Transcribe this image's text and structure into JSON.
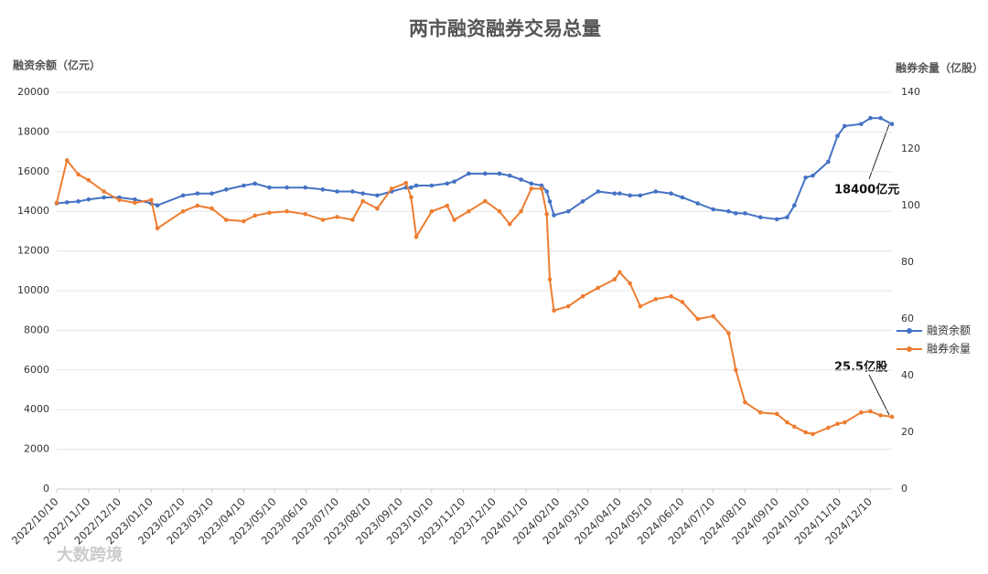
{
  "chart_data": {
    "type": "line",
    "title": "两市融资融券交易总量",
    "y_label": "融资余额（亿元）",
    "y2_label": "融券余量（亿股）",
    "watermark": "大数跨境",
    "x": [
      "2022/10/10",
      "2022/10/20",
      "2022/10/31",
      "2022/11/10",
      "2022/11/25",
      "2022/12/10",
      "2022/12/25",
      "2023/01/10",
      "2023/01/16",
      "2023/02/10",
      "2023/02/24",
      "2023/03/10",
      "2023/03/24",
      "2023/04/10",
      "2023/04/21",
      "2023/05/05",
      "2023/05/22",
      "2023/06/09",
      "2023/06/26",
      "2023/07/10",
      "2023/07/25",
      "2023/08/04",
      "2023/08/18",
      "2023/09/01",
      "2023/09/15",
      "2023/09/20",
      "2023/09/25",
      "2023/10/10",
      "2023/10/25",
      "2023/11/01",
      "2023/11/15",
      "2023/12/01",
      "2023/12/15",
      "2023/12/25",
      "2024/01/05",
      "2024/01/15",
      "2024/01/25",
      "2024/01/30",
      "2024/02/02",
      "2024/02/06",
      "2024/02/20",
      "2024/03/05",
      "2024/03/20",
      "2024/04/05",
      "2024/04/10",
      "2024/04/20",
      "2024/04/30",
      "2024/05/15",
      "2024/05/30",
      "2024/06/10",
      "2024/06/25",
      "2024/07/10",
      "2024/07/25",
      "2024/08/01",
      "2024/08/10",
      "2024/08/25",
      "2024/09/10",
      "2024/09/20",
      "2024/09/27",
      "2024/10/08",
      "2024/10/15",
      "2024/10/30",
      "2024/11/08",
      "2024/11/15",
      "2024/12/01",
      "2024/12/10",
      "2024/12/20",
      "2024/12/31"
    ],
    "series": [
      {
        "name": "融资余额",
        "color": "#4472c4",
        "axis": "y",
        "values": [
          14400,
          14450,
          14500,
          14600,
          14700,
          14700,
          14600,
          14400,
          14300,
          14800,
          14900,
          14900,
          15100,
          15300,
          15400,
          15200,
          15200,
          15200,
          15100,
          15000,
          15000,
          14900,
          14800,
          15000,
          15200,
          15200,
          15300,
          15300,
          15400,
          15500,
          15900,
          15900,
          15900,
          15800,
          15600,
          15400,
          15300,
          15000,
          14500,
          13800,
          14000,
          14500,
          15000,
          14900,
          14900,
          14800,
          14800,
          15000,
          14900,
          14700,
          14400,
          14100,
          14000,
          13900,
          13900,
          13700,
          13600,
          13700,
          14300,
          15700,
          15800,
          16500,
          17800,
          18300,
          18400,
          18700,
          18700,
          18400
        ]
      },
      {
        "name": "融券余量",
        "color": "#ed7d31",
        "axis": "y2",
        "values": [
          101,
          116,
          111,
          109,
          105,
          102,
          101,
          102,
          92,
          98,
          100,
          99,
          95,
          94.5,
          96.5,
          97.5,
          98,
          97,
          95,
          96,
          95,
          101.6,
          99,
          106,
          108,
          103,
          89,
          98,
          100,
          95,
          98,
          101.6,
          98,
          93.5,
          98,
          106,
          106,
          97,
          74,
          63,
          64.5,
          68,
          71,
          74,
          76.5,
          72.6,
          64.5,
          67,
          68,
          66,
          60,
          61,
          55,
          42,
          30.6,
          27,
          26.5,
          23.5,
          22,
          20,
          19.4,
          21.6,
          23,
          23.5,
          27,
          27.4,
          26,
          25.5
        ]
      }
    ],
    "annotations": [
      "18400亿元",
      "25.5亿股"
    ],
    "xlim": [
      "2022/10/10",
      "2024/12/31"
    ],
    "xticks": [
      "2022/10/10",
      "2022/11/10",
      "2022/12/10",
      "2023/01/10",
      "2023/02/10",
      "2023/03/10",
      "2023/04/10",
      "2023/05/10",
      "2023/06/10",
      "2023/07/10",
      "2023/08/10",
      "2023/09/10",
      "2023/10/10",
      "2023/11/10",
      "2023/12/10",
      "2024/01/10",
      "2024/02/10",
      "2024/03/10",
      "2024/04/10",
      "2024/05/10",
      "2024/06/10",
      "2024/07/10",
      "2024/08/10",
      "2024/09/10",
      "2024/10/10",
      "2024/11/10",
      "2024/12/10"
    ],
    "ylim": [
      0,
      20000
    ],
    "yticks": [
      0,
      2000,
      4000,
      6000,
      8000,
      10000,
      12000,
      14000,
      16000,
      18000,
      20000
    ],
    "y2lim": [
      0,
      140
    ],
    "y2ticks": [
      0,
      20,
      40,
      60,
      80,
      100,
      120,
      140
    ],
    "grid": true,
    "legend": "right"
  }
}
